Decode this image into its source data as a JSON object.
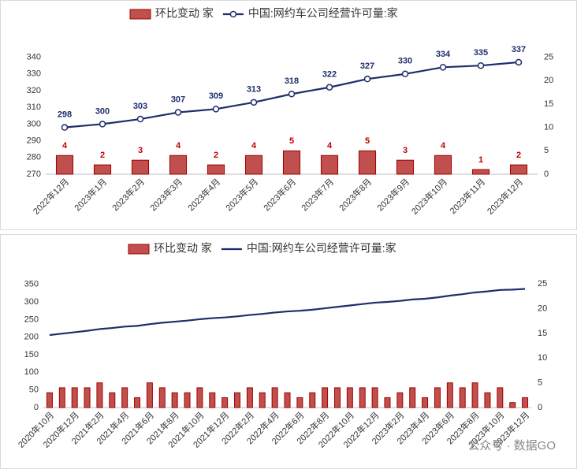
{
  "chart_data": [
    {
      "type": "bar_line",
      "categories": [
        "2022年12月",
        "2023年1月",
        "2023年2月",
        "2023年3月",
        "2023年4月",
        "2023年5月",
        "2023年6月",
        "2023年7月",
        "2023年8月",
        "2023年9月",
        "2023年10月",
        "2023年11月",
        "2023年12月"
      ],
      "series": [
        {
          "name": "环比变动 家",
          "type": "bar",
          "axis": "y2",
          "color": "#c0504d",
          "label_color": "#c00000",
          "values": [
            4,
            2,
            3,
            4,
            2,
            4,
            5,
            4,
            5,
            3,
            4,
            1,
            2
          ]
        },
        {
          "name": "中国:网约车公司经营许可量:家",
          "type": "line",
          "color": "#1f2d6b",
          "label_color": "#1f2d6b",
          "values": [
            298,
            300,
            303,
            307,
            309,
            313,
            318,
            322,
            327,
            330,
            334,
            335,
            337
          ]
        }
      ],
      "ylim": [
        270,
        345
      ],
      "yticks": [
        270,
        280,
        290,
        300,
        310,
        320,
        330,
        340
      ],
      "y2lim": [
        0,
        26.8
      ],
      "y2ticks": [
        0,
        5,
        10,
        15,
        20,
        25
      ],
      "markers": true,
      "data_labels": true,
      "grid": false,
      "legend": "top"
    },
    {
      "type": "bar_line",
      "categories": [
        "2020年10月",
        null,
        "2020年12月",
        null,
        "2021年2月",
        null,
        "2021年4月",
        null,
        "2021年6月",
        null,
        "2021年8月",
        null,
        "2021年10月",
        null,
        "2021年12月",
        null,
        "2022年2月",
        null,
        "2022年4月",
        null,
        "2022年6月",
        null,
        "2022年8月",
        null,
        "2022年10月",
        null,
        "2022年12月",
        null,
        "2023年2月",
        null,
        "2023年4月",
        null,
        "2023年6月",
        null,
        "2023年8月",
        null,
        "2023年10月",
        null,
        "2023年12月"
      ],
      "series": [
        {
          "name": "环比变动 家",
          "type": "bar",
          "axis": "y2",
          "color": "#c0504d",
          "values": [
            3,
            4,
            4,
            4,
            5,
            3,
            4,
            2,
            5,
            4,
            3,
            3,
            4,
            3,
            2,
            3,
            4,
            3,
            4,
            3,
            2,
            3,
            4,
            4,
            4,
            4,
            4,
            2,
            3,
            4,
            2,
            4,
            5,
            4,
            5,
            3,
            4,
            1,
            2
          ]
        },
        {
          "name": "中国:网约车公司经营许可量:家",
          "type": "line",
          "color": "#1f2d6b",
          "values": [
            206,
            210,
            214,
            218,
            223,
            226,
            230,
            232,
            237,
            241,
            244,
            247,
            251,
            254,
            256,
            259,
            263,
            266,
            270,
            273,
            275,
            278,
            282,
            286,
            290,
            294,
            298,
            300,
            303,
            307,
            309,
            313,
            318,
            322,
            327,
            330,
            334,
            335,
            337
          ]
        }
      ],
      "ylim": [
        0,
        365
      ],
      "yticks": [
        0,
        50,
        100,
        150,
        200,
        250,
        300,
        350
      ],
      "y2lim": [
        0,
        26
      ],
      "y2ticks": [
        0,
        5,
        10,
        15,
        20,
        25
      ],
      "markers": false,
      "data_labels": false,
      "grid": false,
      "legend": "top",
      "watermark": "公众号 · 数据GO"
    }
  ]
}
